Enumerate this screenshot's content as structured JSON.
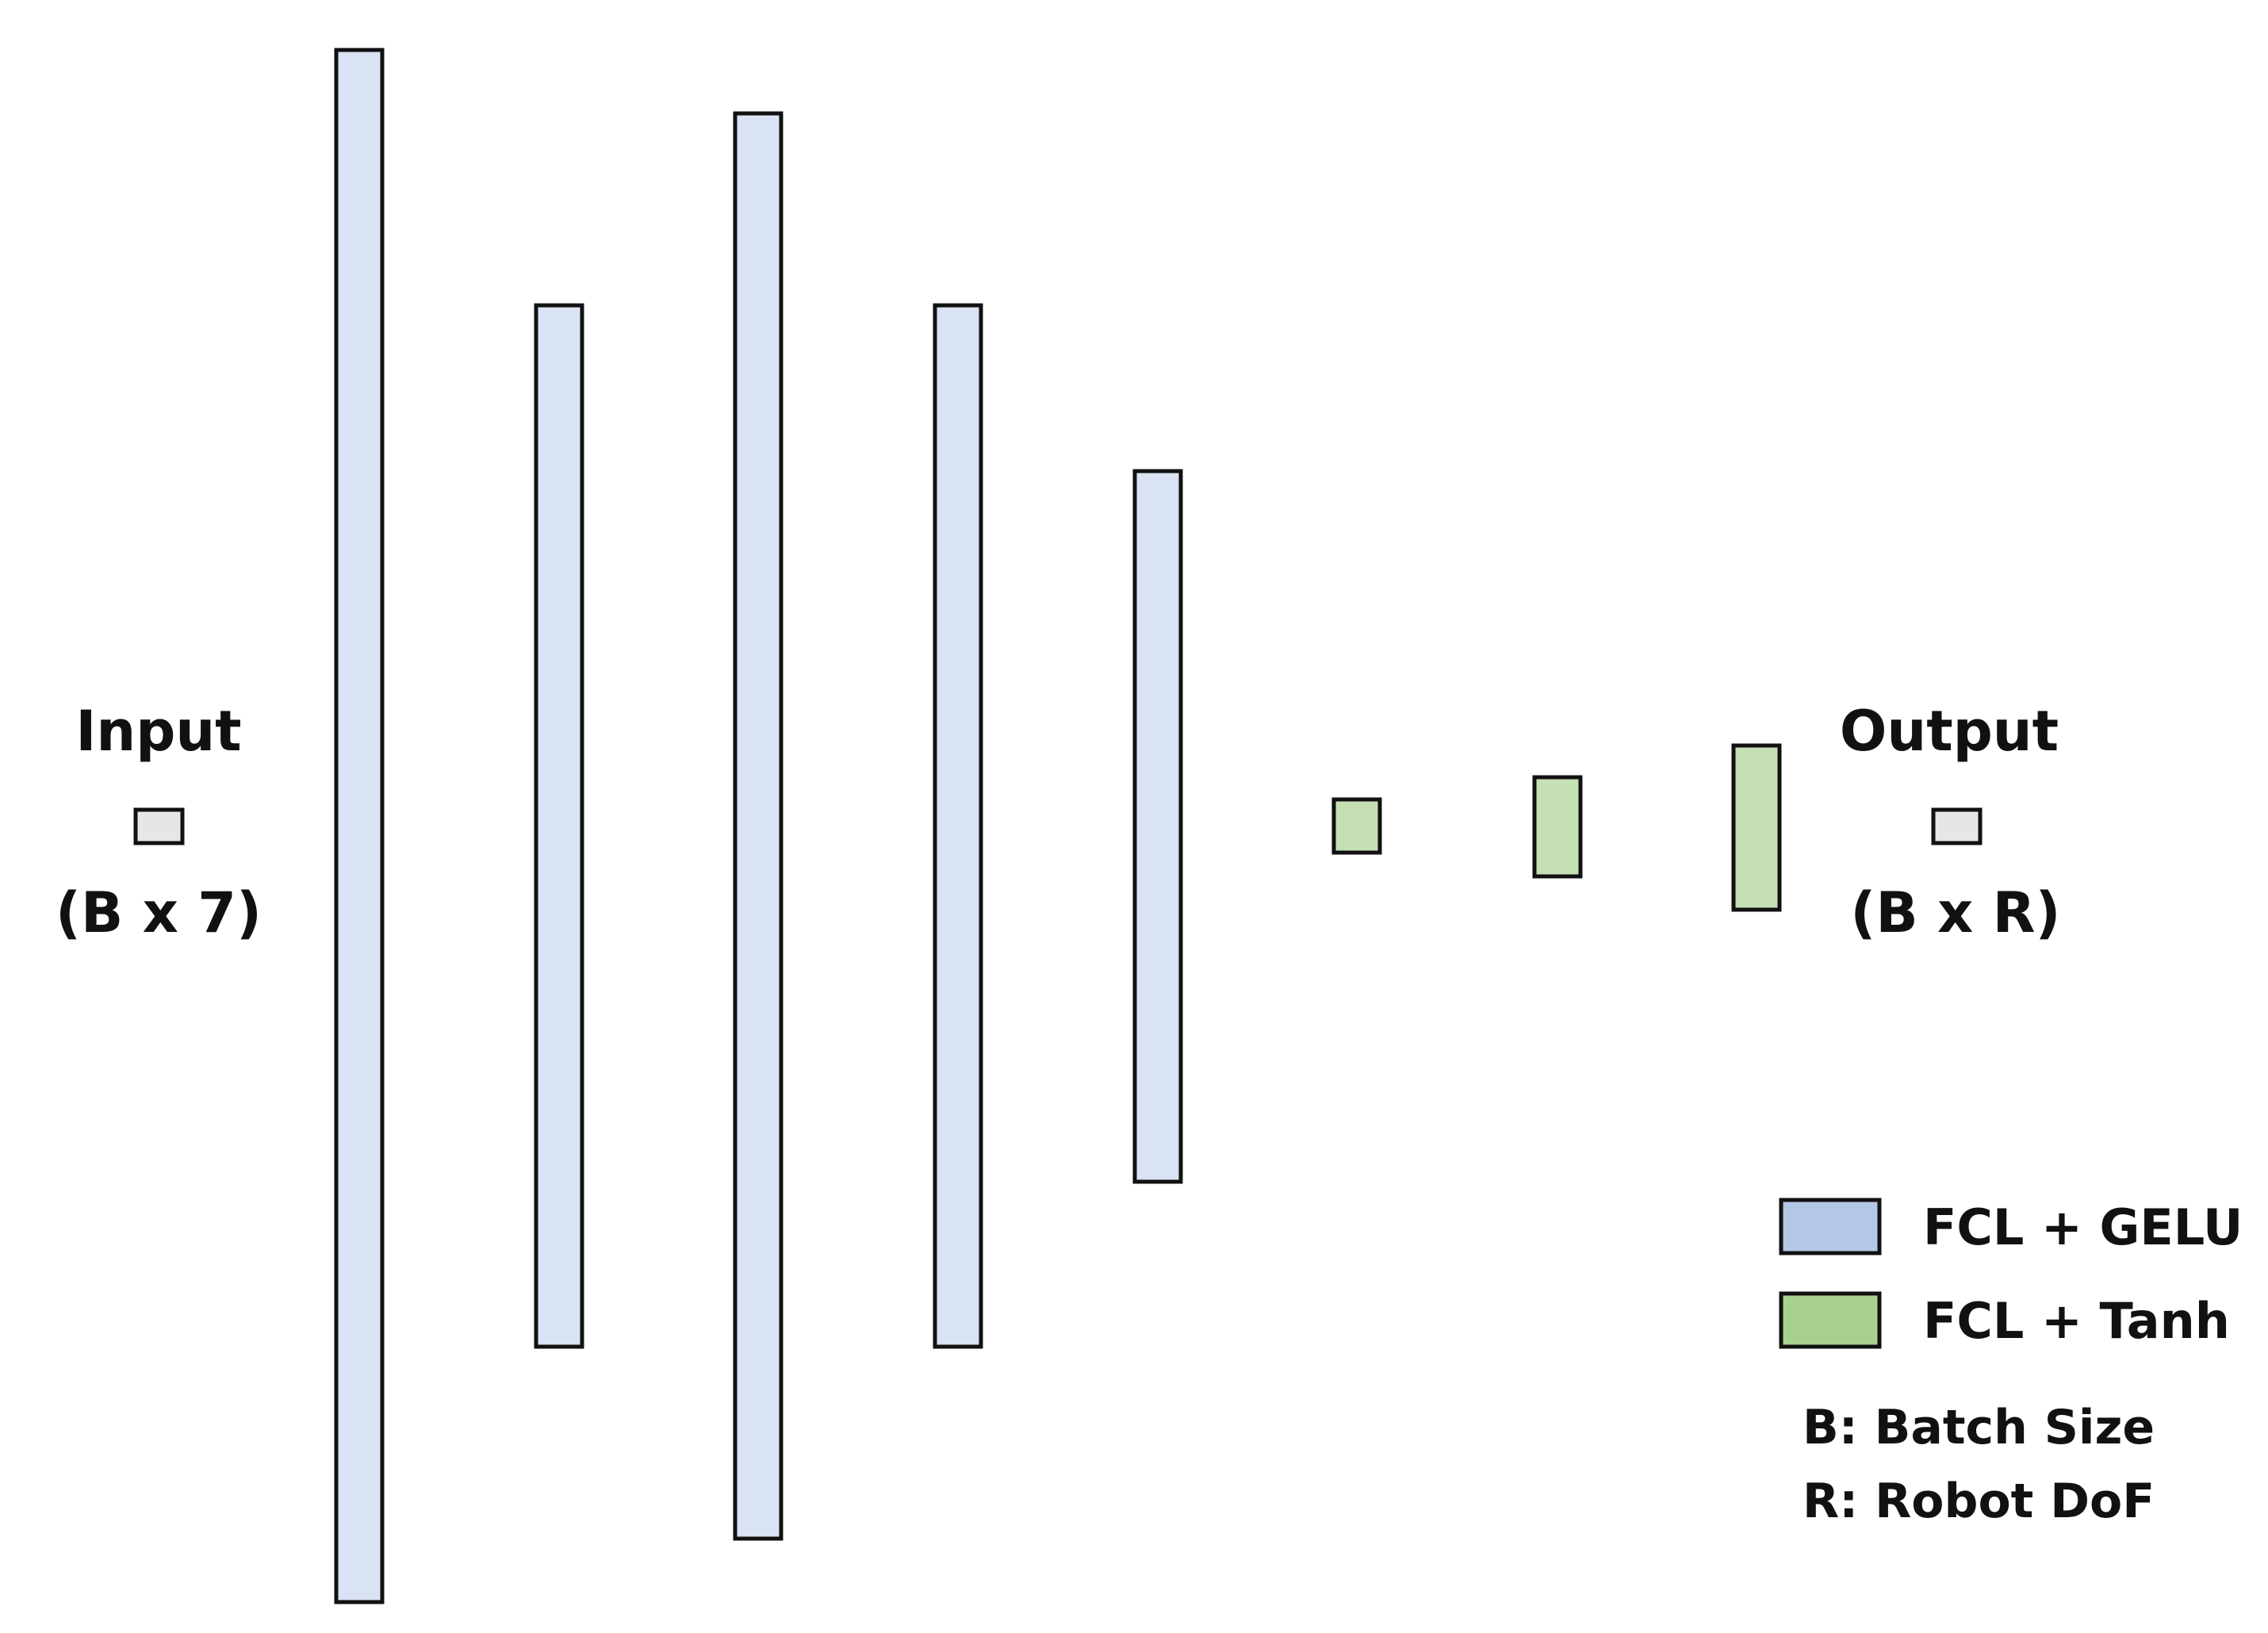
{
  "colors": {
    "gelu_layer": "#dae3f3",
    "tanh_layer": "#c5e0b4",
    "io_node": "#e7e6e6",
    "legend_gelu": "#b4c7e7",
    "legend_tanh": "#a9d18e",
    "outline": "#111111"
  },
  "input": {
    "title": "Input",
    "shape": "(B x 7)"
  },
  "output": {
    "title": "Output",
    "shape": "(B x R)"
  },
  "layers": [
    {
      "type": "gelu"
    },
    {
      "type": "gelu"
    },
    {
      "type": "gelu"
    },
    {
      "type": "gelu"
    },
    {
      "type": "gelu"
    },
    {
      "type": "tanh"
    },
    {
      "type": "tanh"
    },
    {
      "type": "tanh"
    }
  ],
  "legend": {
    "gelu_label": "FCL + GELU",
    "tanh_label": "FCL + Tanh"
  },
  "notes": {
    "batch": "B: Batch Size",
    "dof": "R: Robot DoF"
  }
}
